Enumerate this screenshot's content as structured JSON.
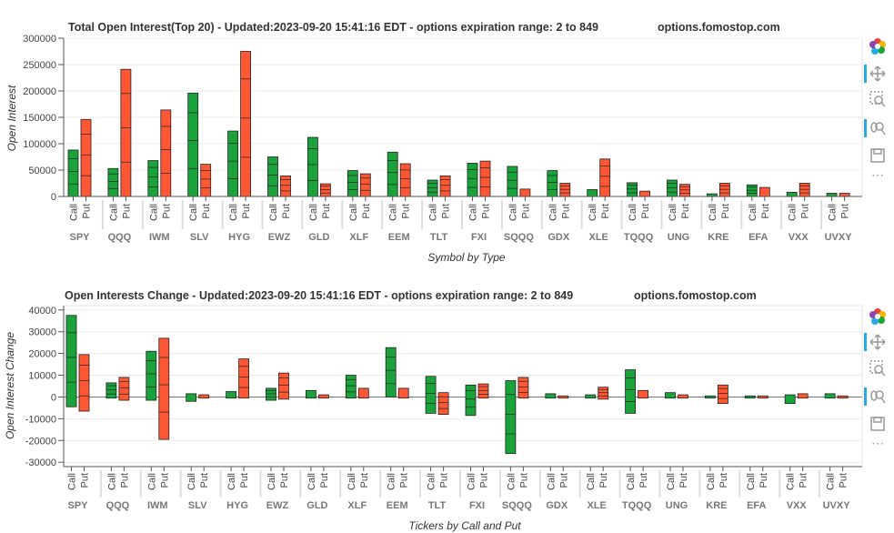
{
  "charts": [
    {
      "title": "Total Open Interest(Top 20) - Updated:2023-09-20 15:41:16 EDT - options expiration range: 2 to 849",
      "site": "options.fomostop.com",
      "ylabel": "Open Interest",
      "xlabel": "Symbol by Type",
      "yticks": [
        "0",
        "50000",
        "100000",
        "150000",
        "200000",
        "250000",
        "300000"
      ]
    },
    {
      "title": "Open Interests Change - Updated:2023-09-20 15:41:16 EDT - options expiration range: 2 to 849",
      "site": "options.fomostop.com",
      "ylabel": "Open Interest Change",
      "xlabel": "Tickers by Call and Put",
      "yticks": [
        "-30000",
        "-20000",
        "-10000",
        "0",
        "10000",
        "20000",
        "30000",
        "40000"
      ]
    }
  ],
  "toolbar": {
    "logo": "bokeh-logo-icon",
    "tools": [
      "pan-icon",
      "box-zoom-icon",
      "wheel-zoom-icon",
      "save-icon",
      "more-icon"
    ],
    "more_label": "⋯"
  },
  "chart_data": [
    {
      "type": "bar",
      "title": "Total Open Interest(Top 20) - Updated:2023-09-20 15:41:16 EDT - options expiration range: 2 to 849",
      "subtitle": "options.fomostop.com",
      "xlabel": "Symbol by Type",
      "ylabel": "Open Interest",
      "ylim": [
        0,
        300000
      ],
      "grid": true,
      "categories": [
        "SPY",
        "QQQ",
        "IWM",
        "SLV",
        "HYG",
        "EWZ",
        "GLD",
        "XLF",
        "EEM",
        "TLT",
        "FXI",
        "SQQQ",
        "GDX",
        "XLE",
        "TQQQ",
        "UNG",
        "KRE",
        "EFA",
        "VXX",
        "UVXY"
      ],
      "subcategories": [
        "Call",
        "Put"
      ],
      "series": [
        {
          "name": "Call",
          "color": "#1aa33a",
          "values": [
            88000,
            53000,
            68000,
            196000,
            124000,
            75000,
            112000,
            49000,
            84000,
            31000,
            63000,
            57000,
            49000,
            13000,
            26000,
            31000,
            5000,
            22000,
            8000,
            6000
          ]
        },
        {
          "name": "Put",
          "color": "#ff5733",
          "values": [
            146000,
            241000,
            164000,
            61000,
            275000,
            39000,
            24000,
            43000,
            62000,
            39000,
            67000,
            14000,
            25000,
            71000,
            10000,
            23000,
            25000,
            17000,
            25000,
            6000
          ]
        }
      ]
    },
    {
      "type": "bar",
      "title": "Open Interests Change - Updated:2023-09-20 15:41:16 EDT - options expiration range: 2 to 849",
      "subtitle": "options.fomostop.com",
      "xlabel": "Tickers by Call and Put",
      "ylabel": "Open Interest Change",
      "ylim": [
        -32000,
        42000
      ],
      "grid": true,
      "categories": [
        "SPY",
        "QQQ",
        "IWM",
        "SLV",
        "HYG",
        "EWZ",
        "GLD",
        "XLF",
        "EEM",
        "TLT",
        "FXI",
        "SQQQ",
        "GDX",
        "XLE",
        "TQQQ",
        "UNG",
        "KRE",
        "EFA",
        "VXX",
        "UVXY"
      ],
      "subcategories": [
        "Call",
        "Put"
      ],
      "series": [
        {
          "name": "Call",
          "color": "#1aa33a",
          "ranges": [
            [
              -4500,
              37500
            ],
            [
              -500,
              6500
            ],
            [
              -1500,
              21000
            ],
            [
              -2000,
              1500
            ],
            [
              -500,
              2500
            ],
            [
              -1500,
              4000
            ],
            [
              -500,
              3000
            ],
            [
              -500,
              10000
            ],
            [
              0,
              22700
            ],
            [
              -7500,
              9500
            ],
            [
              -8500,
              5500
            ],
            [
              -26000,
              7500
            ],
            [
              -500,
              1500
            ],
            [
              -500,
              1000
            ],
            [
              -7500,
              12500
            ],
            [
              -500,
              2000
            ],
            [
              -500,
              500
            ],
            [
              -500,
              500
            ],
            [
              -3000,
              1000
            ],
            [
              -500,
              1500
            ]
          ]
        },
        {
          "name": "Put",
          "color": "#ff5733",
          "ranges": [
            [
              -6500,
              19500
            ],
            [
              -1500,
              9000
            ],
            [
              -19500,
              27000
            ],
            [
              -500,
              1000
            ],
            [
              -500,
              17500
            ],
            [
              -1000,
              11000
            ],
            [
              -500,
              1000
            ],
            [
              -500,
              4000
            ],
            [
              -500,
              4000
            ],
            [
              -8000,
              2000
            ],
            [
              -500,
              6000
            ],
            [
              -500,
              9000
            ],
            [
              -500,
              500
            ],
            [
              -1000,
              4500
            ],
            [
              -500,
              3000
            ],
            [
              -500,
              1000
            ],
            [
              -3000,
              5500
            ],
            [
              -500,
              500
            ],
            [
              -500,
              1500
            ],
            [
              -500,
              500
            ]
          ]
        }
      ]
    }
  ]
}
